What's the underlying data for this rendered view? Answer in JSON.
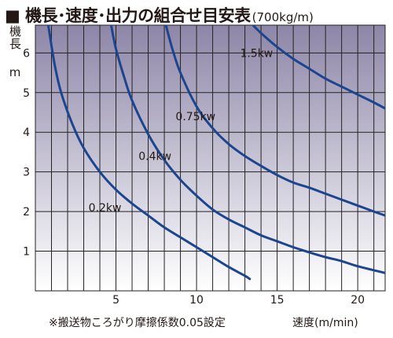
{
  "chart_data": {
    "type": "line",
    "title": "■ 機長･速度･出力の組合せ目安表",
    "title_unit": "(700kg/m)",
    "ylabel": "機長 m",
    "xlabel": "速度(m/min)",
    "note": "※搬送物ころがり摩擦係数0.05設定",
    "xlim": [
      0,
      21.7
    ],
    "ylim": [
      0,
      6.7
    ],
    "x_ticks": [
      5,
      10,
      15,
      20
    ],
    "y_ticks": [
      1,
      2,
      3,
      4,
      5,
      6
    ],
    "grid": true,
    "background_gradient": [
      "#8d86a8",
      "#ffffff"
    ],
    "line_color": "#1c4590",
    "series": [
      {
        "name": "0.2kw",
        "label_at": [
          3.3,
          2.0
        ],
        "points": [
          [
            0.8,
            6.7
          ],
          [
            1.2,
            5.7
          ],
          [
            1.6,
            5.0
          ],
          [
            2.3,
            4.2
          ],
          [
            3,
            3.6
          ],
          [
            4,
            3.0
          ],
          [
            5,
            2.55
          ],
          [
            6,
            2.2
          ],
          [
            7,
            1.9
          ],
          [
            8,
            1.6
          ],
          [
            9,
            1.35
          ],
          [
            10,
            1.1
          ],
          [
            11,
            0.85
          ],
          [
            12,
            0.6
          ],
          [
            13,
            0.38
          ],
          [
            13.3,
            0.3
          ]
        ]
      },
      {
        "name": "0.4kw",
        "label_at": [
          6.4,
          3.3
        ],
        "points": [
          [
            4.7,
            6.7
          ],
          [
            5,
            6.1
          ],
          [
            5.5,
            5.4
          ],
          [
            6,
            4.8
          ],
          [
            7,
            3.95
          ],
          [
            8,
            3.3
          ],
          [
            9,
            2.8
          ],
          [
            10,
            2.4
          ],
          [
            11,
            2.05
          ],
          [
            12,
            1.8
          ],
          [
            13,
            1.6
          ],
          [
            14,
            1.4
          ],
          [
            15,
            1.25
          ],
          [
            16,
            1.1
          ],
          [
            17,
            0.97
          ],
          [
            18,
            0.85
          ],
          [
            19,
            0.75
          ],
          [
            20,
            0.62
          ],
          [
            21.7,
            0.45
          ]
        ]
      },
      {
        "name": "0.75kw",
        "label_at": [
          8.7,
          4.3
        ],
        "points": [
          [
            8.1,
            6.7
          ],
          [
            8.5,
            6.1
          ],
          [
            9,
            5.5
          ],
          [
            10,
            4.65
          ],
          [
            11,
            4.1
          ],
          [
            12,
            3.7
          ],
          [
            13,
            3.4
          ],
          [
            14,
            3.15
          ],
          [
            15,
            2.92
          ],
          [
            16,
            2.73
          ],
          [
            17,
            2.6
          ],
          [
            18,
            2.45
          ],
          [
            19,
            2.3
          ],
          [
            20,
            2.15
          ],
          [
            21,
            2.0
          ],
          [
            21.7,
            1.9
          ]
        ]
      },
      {
        "name": "1.5kw",
        "label_at": [
          12.7,
          5.9
        ],
        "points": [
          [
            13.5,
            6.7
          ],
          [
            14,
            6.5
          ],
          [
            15,
            6.15
          ],
          [
            16,
            5.85
          ],
          [
            17,
            5.6
          ],
          [
            18,
            5.35
          ],
          [
            19,
            5.15
          ],
          [
            20,
            4.95
          ],
          [
            21,
            4.75
          ],
          [
            21.7,
            4.6
          ]
        ]
      }
    ]
  }
}
